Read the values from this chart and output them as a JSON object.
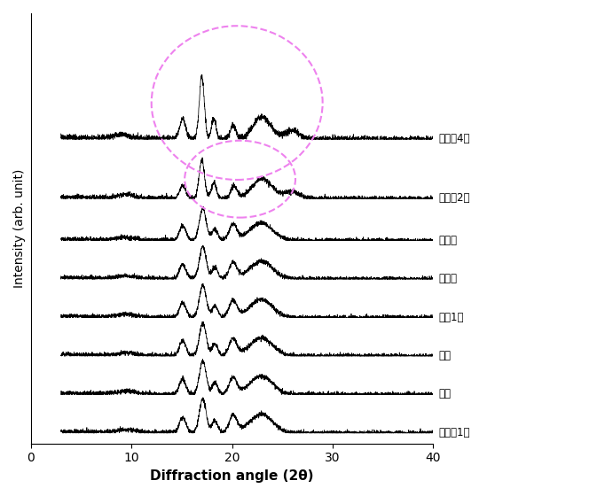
{
  "xlabel": "Diffraction angle (2θ)",
  "ylabel": "Intensity (arb. unit)",
  "xlim": [
    0,
    40
  ],
  "xticklabels": [
    "0",
    "10",
    "20",
    "30",
    "40"
  ],
  "xticks": [
    0,
    10,
    20,
    30,
    40
  ],
  "labels": [
    "백진주1호",
    "일품",
    "설갱",
    "대립1호",
    "한아름",
    "고아미",
    "고아미2호",
    "고아미4호"
  ],
  "line_color": "#000000",
  "ellipse_color": "#ee82ee",
  "background": "#ffffff",
  "offsets": [
    0.0,
    0.55,
    1.1,
    1.65,
    2.2,
    2.75,
    3.35,
    4.2
  ],
  "seed": 42
}
